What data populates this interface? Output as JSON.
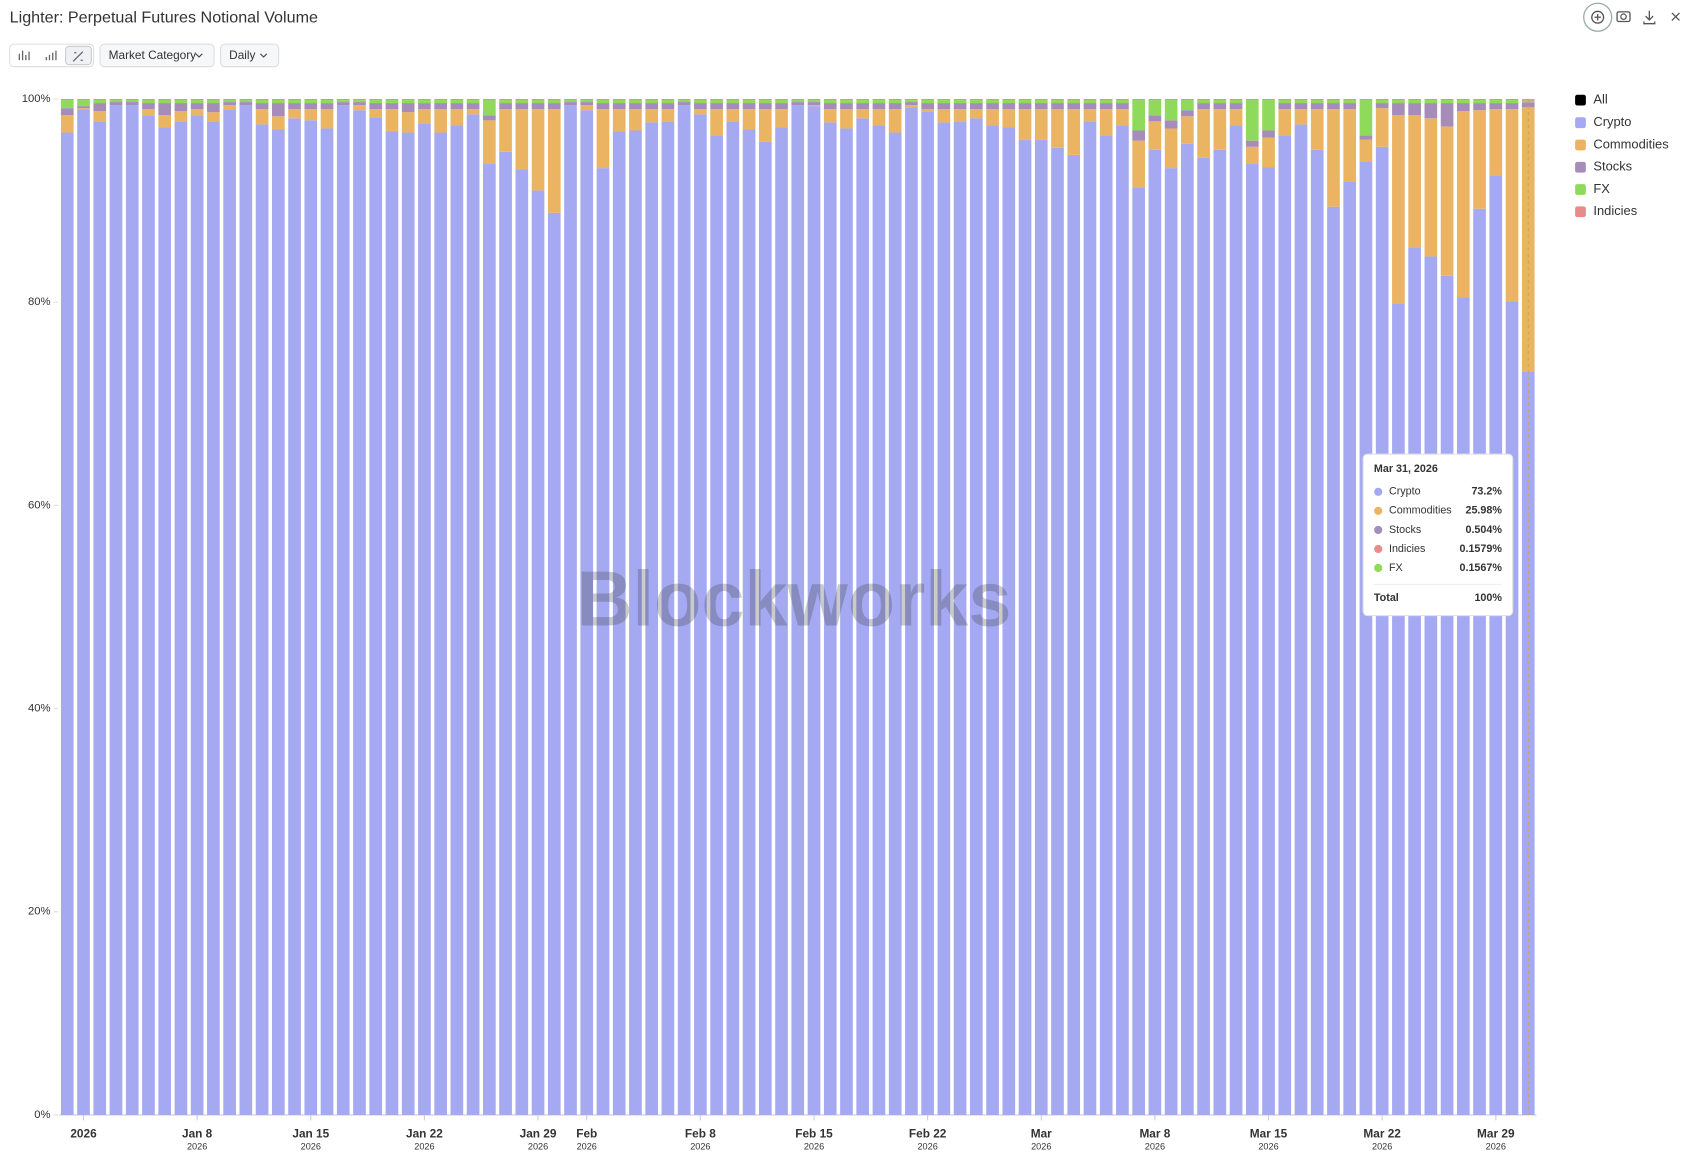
{
  "chart_data": {
    "type": "stacked_percent_bar",
    "title": "Lighter: Perpetual Futures Notional Volume",
    "controls": {
      "group_by": "Market Category",
      "interval": "Daily"
    },
    "watermark": "Blockworks",
    "legend_all": "All",
    "legend": "right",
    "categories": [
      null,
      "2026",
      null,
      null,
      null,
      null,
      null,
      null,
      "Jan 8",
      null,
      null,
      null,
      null,
      null,
      null,
      "Jan 15",
      null,
      null,
      null,
      null,
      null,
      null,
      "Jan 22",
      null,
      null,
      null,
      null,
      null,
      null,
      "Jan 29",
      null,
      null,
      "Feb",
      null,
      null,
      null,
      null,
      null,
      null,
      "Feb 8",
      null,
      null,
      null,
      null,
      null,
      null,
      "Feb 15",
      null,
      null,
      null,
      null,
      null,
      null,
      "Feb 22",
      null,
      null,
      null,
      null,
      null,
      null,
      "Mar",
      null,
      null,
      null,
      null,
      null,
      null,
      "Mar 8",
      null,
      null,
      null,
      null,
      null,
      null,
      "Mar 15",
      null,
      null,
      null,
      null,
      null,
      null,
      "Mar 22",
      null,
      null,
      null,
      null,
      null,
      null,
      "Mar 29",
      null,
      null
    ],
    "category_years": [
      null,
      null,
      null,
      null,
      null,
      null,
      null,
      null,
      "2026",
      null,
      null,
      null,
      null,
      null,
      null,
      "2026",
      null,
      null,
      null,
      null,
      null,
      null,
      "2026",
      null,
      null,
      null,
      null,
      null,
      null,
      "2026",
      null,
      null,
      "2026",
      null,
      null,
      null,
      null,
      null,
      null,
      "2026",
      null,
      null,
      null,
      null,
      null,
      null,
      "2026",
      null,
      null,
      null,
      null,
      null,
      null,
      "2026",
      null,
      null,
      null,
      null,
      null,
      null,
      "2026",
      null,
      null,
      null,
      null,
      null,
      null,
      "2026",
      null,
      null,
      null,
      null,
      null,
      null,
      "2026",
      null,
      null,
      null,
      null,
      null,
      null,
      "2026",
      null,
      null,
      null,
      null,
      null,
      null,
      "2026",
      null,
      null
    ],
    "ylim": [
      0,
      100
    ],
    "yticks": [
      {
        "value": 0,
        "label": "0%"
      },
      {
        "value": 20,
        "label": "20%"
      },
      {
        "value": 40,
        "label": "40%"
      },
      {
        "value": 60,
        "label": "60%"
      },
      {
        "value": 80,
        "label": "80%"
      },
      {
        "value": 100,
        "label": "100%"
      }
    ],
    "series": [
      {
        "name": "Crypto",
        "color": "#a4a9f1",
        "values": [
          96.7,
          99.0,
          97.8,
          99.4,
          99.4,
          98.4,
          97.2,
          97.8,
          98.4,
          97.8,
          99.0,
          99.4,
          97.5,
          97.0,
          98.1,
          97.9,
          97.1,
          99.4,
          98.9,
          98.2,
          96.8,
          96.7,
          97.6,
          96.7,
          97.4,
          98.5,
          93.6,
          94.8,
          93.1,
          91.0,
          88.8,
          99.4,
          98.9,
          93.2,
          96.8,
          96.9,
          97.7,
          97.8,
          99.4,
          98.5,
          96.4,
          97.8,
          97.0,
          95.8,
          97.2,
          99.4,
          99.3,
          97.7,
          97.1,
          98.1,
          97.4,
          96.7,
          99.2,
          98.8,
          97.7,
          97.8,
          98.1,
          97.4,
          97.2,
          96.0,
          96.0,
          95.2,
          94.5,
          97.8,
          96.4,
          97.4,
          91.3,
          95.0,
          93.2,
          95.6,
          94.2,
          95.0,
          97.4,
          93.6,
          93.3,
          96.4,
          97.5,
          95.0,
          89.4,
          91.9,
          93.8,
          95.3,
          79.9,
          85.4,
          84.5,
          82.6,
          80.5,
          89.2,
          92.5,
          80.1,
          73.2
        ]
      },
      {
        "name": "Commodities",
        "color": "#ebb462",
        "values": [
          1.7,
          0.1,
          1.0,
          0,
          0,
          0.6,
          1.2,
          1.0,
          0.6,
          0.9,
          0.4,
          0,
          1.5,
          1.3,
          0.9,
          1.1,
          1.9,
          0,
          0.5,
          0.8,
          2.2,
          2.0,
          1.4,
          2.3,
          1.6,
          0.5,
          4.3,
          4.2,
          5.9,
          8.0,
          10.2,
          0,
          0.5,
          5.8,
          2.2,
          2.1,
          1.3,
          1.2,
          0,
          0.5,
          2.6,
          1.2,
          2.0,
          3.2,
          1.8,
          0,
          0.1,
          1.3,
          1.9,
          0.9,
          1.6,
          2.3,
          0.2,
          0.2,
          1.3,
          1.2,
          0.9,
          1.6,
          1.8,
          3.0,
          3.0,
          3.8,
          4.5,
          1.2,
          2.6,
          1.6,
          4.6,
          2.8,
          3.9,
          2.7,
          4.8,
          4.0,
          1.6,
          1.7,
          2.9,
          2.6,
          1.5,
          4.0,
          9.6,
          7.1,
          2.2,
          3.8,
          18.5,
          13.0,
          13.6,
          14.7,
          18.3,
          9.7,
          6.5,
          18.9,
          25.98
        ]
      },
      {
        "name": "Stocks",
        "color": "#a68cb9",
        "values": [
          0.7,
          0.2,
          0.8,
          0.3,
          0.3,
          0.6,
          1.2,
          0.8,
          0.6,
          0.9,
          0.3,
          0.3,
          0.6,
          1.3,
          0.6,
          0.6,
          0.6,
          0.3,
          0.3,
          0.6,
          0.6,
          0.9,
          0.6,
          0.6,
          0.6,
          0.6,
          0.5,
          0.6,
          0.6,
          0.6,
          0.6,
          0.3,
          0.3,
          0.6,
          0.6,
          0.6,
          0.6,
          0.6,
          0.3,
          0.6,
          0.6,
          0.6,
          0.6,
          0.6,
          0.6,
          0.3,
          0.3,
          0.6,
          0.6,
          0.6,
          0.6,
          0.6,
          0.3,
          0.6,
          0.6,
          0.6,
          0.6,
          0.6,
          0.6,
          0.6,
          0.6,
          0.6,
          0.6,
          0.6,
          0.6,
          0.6,
          1.0,
          0.6,
          0.8,
          0.6,
          0.6,
          0.6,
          0.6,
          0.6,
          0.7,
          0.6,
          0.6,
          0.6,
          0.6,
          0.6,
          0.4,
          0.5,
          1.2,
          1.2,
          1.5,
          2.3,
          0.8,
          0.7,
          0.6,
          0.6,
          0.504
        ]
      },
      {
        "name": "FX",
        "color": "#8fd95b",
        "values": [
          0.8,
          0.6,
          0.3,
          0.2,
          0.2,
          0.3,
          0.3,
          0.3,
          0.3,
          0.3,
          0.2,
          0.2,
          0.3,
          0.3,
          0.3,
          0.3,
          0.3,
          0.2,
          0.2,
          0.3,
          0.3,
          0.3,
          0.3,
          0.3,
          0.3,
          0.3,
          1.5,
          0.3,
          0.3,
          0.3,
          0.3,
          0.2,
          0.2,
          0.3,
          0.3,
          0.3,
          0.3,
          0.3,
          0.2,
          0.3,
          0.3,
          0.3,
          0.3,
          0.3,
          0.3,
          0.2,
          0.2,
          0.3,
          0.3,
          0.3,
          0.3,
          0.3,
          0.2,
          0.3,
          0.3,
          0.3,
          0.3,
          0.3,
          0.3,
          0.3,
          0.3,
          0.3,
          0.3,
          0.3,
          0.3,
          0.3,
          3.0,
          1.5,
          2.0,
          1.0,
          0.3,
          0.3,
          0.3,
          4.0,
          3.0,
          0.3,
          0.3,
          0.3,
          0.3,
          0.3,
          3.5,
          0.3,
          0.3,
          0.3,
          0.3,
          0.3,
          0.3,
          0.3,
          0.3,
          0.3,
          0.1567
        ]
      },
      {
        "name": "Indicies",
        "color": "#e98b8b",
        "values": [
          0.1,
          0.1,
          0.1,
          0.1,
          0.1,
          0.1,
          0.1,
          0.1,
          0.1,
          0.1,
          0.1,
          0.1,
          0.1,
          0.1,
          0.1,
          0.1,
          0.1,
          0.1,
          0.1,
          0.1,
          0.1,
          0.1,
          0.1,
          0.1,
          0.1,
          0.1,
          0.1,
          0.1,
          0.1,
          0.1,
          0.1,
          0.1,
          0.1,
          0.1,
          0.1,
          0.1,
          0.1,
          0.1,
          0.1,
          0.1,
          0.1,
          0.1,
          0.1,
          0.1,
          0.1,
          0.1,
          0.1,
          0.1,
          0.1,
          0.1,
          0.1,
          0.1,
          0.1,
          0.1,
          0.1,
          0.1,
          0.1,
          0.1,
          0.1,
          0.1,
          0.1,
          0.1,
          0.1,
          0.1,
          0.1,
          0.1,
          0.1,
          0.1,
          0.1,
          0.1,
          0.1,
          0.1,
          0.1,
          0.1,
          0.1,
          0.1,
          0.1,
          0.1,
          0.1,
          0.1,
          0.1,
          0.1,
          0.1,
          0.1,
          0.1,
          0.1,
          0.1,
          0.1,
          0.1,
          0.1,
          0.1579
        ]
      }
    ],
    "tooltip": {
      "title": "Mar 31, 2026",
      "rows": [
        {
          "name": "Crypto",
          "value": "73.2%",
          "color": "#a4a9f1"
        },
        {
          "name": "Commodities",
          "value": "25.98%",
          "color": "#ebb462"
        },
        {
          "name": "Stocks",
          "value": "0.504%",
          "color": "#a68cb9"
        },
        {
          "name": "Indicies",
          "value": "0.1579%",
          "color": "#e98b8b"
        },
        {
          "name": "FX",
          "value": "0.1567%",
          "color": "#8fd95b"
        }
      ],
      "total_label": "Total",
      "total_value": "100%"
    }
  }
}
